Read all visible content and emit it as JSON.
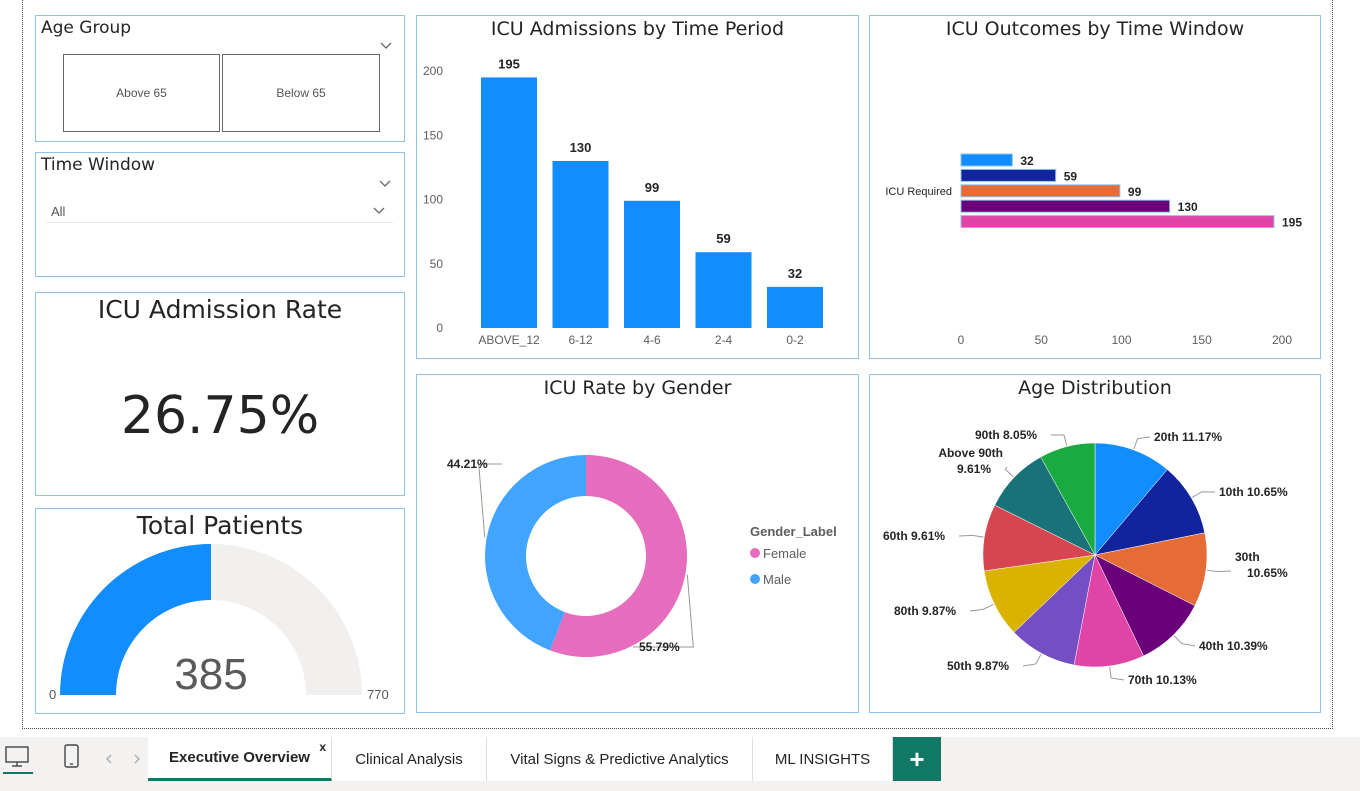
{
  "slicers": {
    "age_group": {
      "title": "Age Group",
      "options": [
        "Above 65",
        "Below 65"
      ]
    },
    "time_window": {
      "title": "Time Window",
      "selected": "All"
    }
  },
  "kpis": {
    "icu_rate": {
      "title": "ICU Admission Rate",
      "value": "26.75%"
    },
    "total_patients": {
      "title": "Total Patients",
      "value": "385",
      "min": "0",
      "max": "770",
      "fill_value": 385,
      "max_value": 770
    }
  },
  "chart_data": [
    {
      "type": "bar",
      "title": "ICU Admissions by Time Period",
      "categories": [
        "ABOVE_12",
        "6-12",
        "4-6",
        "2-4",
        "0-2"
      ],
      "values": [
        195,
        130,
        99,
        59,
        32
      ],
      "value_labels": [
        "195",
        "130",
        "99",
        "59",
        "32"
      ],
      "yticks": [
        "0",
        "50",
        "100",
        "150",
        "200"
      ],
      "ylim": [
        0,
        200
      ],
      "color": "#118dff"
    },
    {
      "type": "bar",
      "orientation": "horizontal",
      "title": "ICU Outcomes by Time Window",
      "category_label": "ICU Required",
      "values": [
        32,
        59,
        99,
        130,
        195
      ],
      "value_labels": [
        "32",
        "59",
        "99",
        "130",
        "195"
      ],
      "colors": [
        "#118dff",
        "#12239e",
        "#e66c37",
        "#6b007b",
        "#e044a7"
      ],
      "xticks": [
        "0",
        "50",
        "100",
        "150",
        "200"
      ],
      "xlim": [
        0,
        200
      ]
    },
    {
      "type": "pie",
      "subtype": "donut",
      "title": "ICU Rate by Gender",
      "legend_title": "Gender_Label",
      "legend_position": "right",
      "slices": [
        {
          "name": "Female",
          "value": 55.79,
          "label": "55.79%",
          "color": "#e66cbd"
        },
        {
          "name": "Male",
          "value": 44.21,
          "label": "44.21%",
          "color": "#41a4ff"
        }
      ]
    },
    {
      "type": "pie",
      "title": "Age Distribution",
      "slices": [
        {
          "name": "20th",
          "value": 11.17,
          "label": "20th 11.17%",
          "color": "#118dff"
        },
        {
          "name": "10th",
          "value": 10.65,
          "label": "10th 10.65%",
          "color": "#12239e"
        },
        {
          "name": "30th",
          "value": 10.65,
          "label": "30th 10.65%",
          "color": "#e66c37"
        },
        {
          "name": "40th",
          "value": 10.39,
          "label": "40th 10.39%",
          "color": "#6b007b"
        },
        {
          "name": "70th",
          "value": 10.13,
          "label": "70th 10.13%",
          "color": "#e044a7"
        },
        {
          "name": "50th",
          "value": 9.87,
          "label": "50th 9.87%",
          "color": "#744ec2"
        },
        {
          "name": "80th",
          "value": 9.87,
          "label": "80th 9.87%",
          "color": "#d9b300"
        },
        {
          "name": "60th",
          "value": 9.61,
          "label": "60th 9.61%",
          "color": "#d64550"
        },
        {
          "name": "Above 90th",
          "value": 9.61,
          "label": "Above 90th 9.61%",
          "color": "#197278"
        },
        {
          "name": "90th",
          "value": 8.05,
          "label": "90th 8.05%",
          "color": "#1aab40"
        }
      ]
    }
  ],
  "tabs": [
    {
      "label": "Executive Overview",
      "active": true
    },
    {
      "label": "Clinical Analysis"
    },
    {
      "label": "Vital Signs & Predictive Analytics"
    },
    {
      "label": "ML INSIGHTS"
    }
  ],
  "tab_close": "x",
  "add_tab": "+",
  "icons": [
    "desktop-view-icon",
    "phone-view-icon",
    "chevron-left-icon",
    "chevron-right-icon"
  ]
}
